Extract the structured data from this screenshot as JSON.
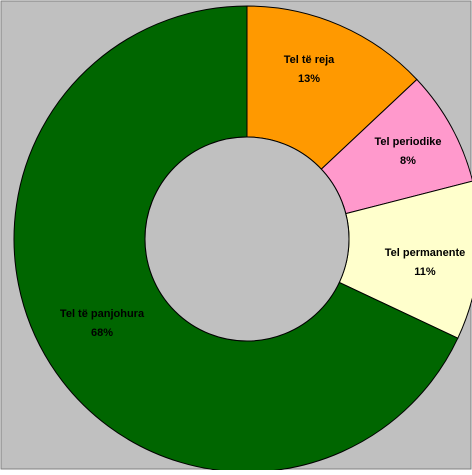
{
  "chart_data": {
    "type": "pie",
    "variant": "donut",
    "categories": [
      "Tel të reja",
      "Tel  periodike",
      "Tel permanente",
      "Tel të panjohura"
    ],
    "values": [
      13,
      8,
      11,
      68
    ],
    "value_labels": [
      "13%",
      "8%",
      "11%",
      "68%"
    ],
    "unit": "%",
    "colors": [
      "#FF9900",
      "#FF99CC",
      "#FFFFCC",
      "#006600"
    ],
    "start_angle_deg": 0,
    "direction": "clockwise",
    "plot_background": "#C0C0C0",
    "legend": "none",
    "grid": false
  }
}
